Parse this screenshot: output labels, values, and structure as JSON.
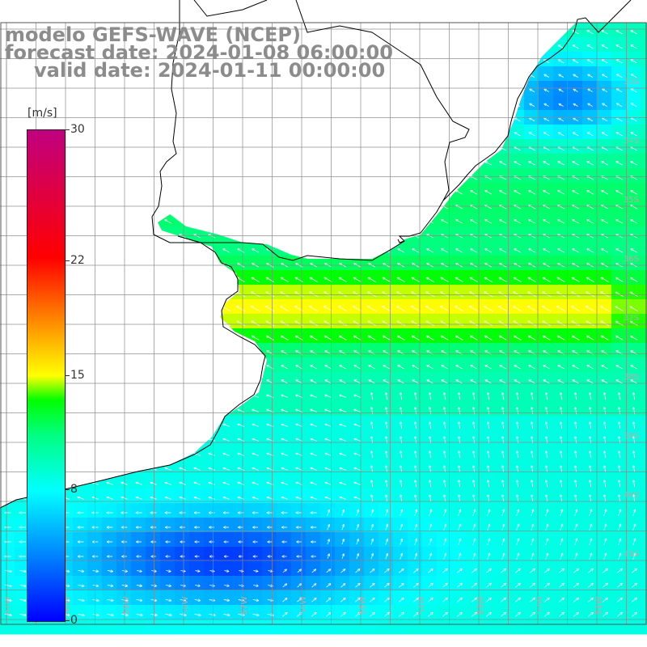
{
  "title": {
    "model": "modelo GEFS-WAVE (NCEP)",
    "forecast_date": "forecast date: 2024-01-08 06:00:00",
    "valid_date": "valid date: 2024-01-11 00:00:00"
  },
  "colorbar": {
    "unit": "[m/s]",
    "min": 0,
    "max": 30,
    "tick_labels": [
      "30",
      "22",
      "15",
      "8",
      "0"
    ],
    "tick_values": [
      30,
      22,
      15,
      8,
      0
    ],
    "colors": [
      "#0000ff",
      "#0080ff",
      "#00ffff",
      "#00ff80",
      "#00ff00",
      "#80ff00",
      "#ffff00",
      "#ff8000",
      "#ff0000",
      "#c00080"
    ]
  },
  "map": {
    "variable": "wind speed and direction",
    "latitude_labels": [
      "33S",
      "34S",
      "35S",
      "36S",
      "37S",
      "38S",
      "39S",
      "40S",
      "41S"
    ],
    "longitude_labels": [
      "61W",
      "60W",
      "59W",
      "58W",
      "57W",
      "56W",
      "55W",
      "54W",
      "53W",
      "52W",
      "51W"
    ],
    "features": [
      "Río de la Plata",
      "Uruguay coast",
      "Buenos Aires coast",
      "Atlantic Ocean"
    ],
    "land_color": "#ffffff",
    "grid_color": "#8a8a8a",
    "coast_color": "#000000",
    "arrow_color": "#ffffff"
  }
}
